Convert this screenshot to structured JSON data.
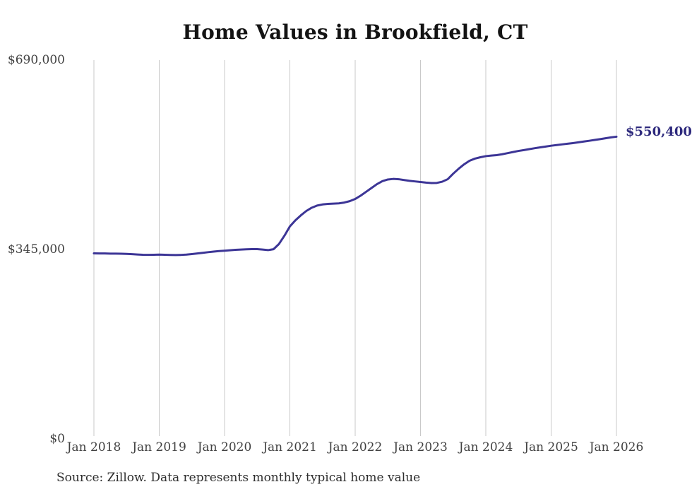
{
  "page": {
    "title": "Home Values in Brookfield, CT",
    "source_note": "Source: Zillow. Data represents monthly typical home value"
  },
  "colors": {
    "line": "#3c3596",
    "end_label": "#2e2a7d",
    "grid": "#c9c9c9",
    "axis_text": "#414141",
    "title_text": "#131313",
    "background": "#ffffff"
  },
  "chart_data": {
    "type": "line",
    "title": "Home Values in Brookfield, CT",
    "series_name": "Monthly typical home value",
    "x_start": "2018-01",
    "x_end": "2026-01",
    "x_interval": "month",
    "x_tick_labels": [
      "Jan 2018",
      "Jan 2019",
      "Jan 2020",
      "Jan 2021",
      "Jan 2022",
      "Jan 2023",
      "Jan 2024",
      "Jan 2025",
      "Jan 2026"
    ],
    "y_tick_labels": [
      "$690,000",
      "$345,000",
      "$0"
    ],
    "y_ticks": [
      690000,
      345000,
      0
    ],
    "ylim": [
      0,
      690000
    ],
    "grid": "vertical-only",
    "legend": "none",
    "end_label": "$550,400",
    "end_value": 550400,
    "values": [
      338000,
      337800,
      337700,
      337500,
      337400,
      337200,
      336900,
      336400,
      335900,
      335400,
      335200,
      335400,
      335700,
      335300,
      335000,
      334800,
      335100,
      335700,
      336600,
      337700,
      338900,
      340100,
      341200,
      342100,
      342800,
      343600,
      344300,
      344900,
      345400,
      345700,
      345700,
      344800,
      343800,
      345500,
      355000,
      370000,
      387000,
      398000,
      407000,
      415000,
      421000,
      425000,
      427000,
      428000,
      428500,
      429000,
      430500,
      433000,
      437000,
      443000,
      450000,
      457000,
      464000,
      469500,
      472500,
      473500,
      473000,
      471500,
      470000,
      469000,
      468000,
      466800,
      466000,
      466200,
      468500,
      473000,
      483000,
      492000,
      500000,
      506500,
      510500,
      513000,
      515000,
      516000,
      516800,
      518500,
      520500,
      522500,
      524500,
      526000,
      527800,
      529500,
      531000,
      532500,
      534000,
      535200,
      536400,
      537600,
      538800,
      540200,
      541600,
      543000,
      544500,
      546000,
      547600,
      549200,
      550400
    ]
  }
}
